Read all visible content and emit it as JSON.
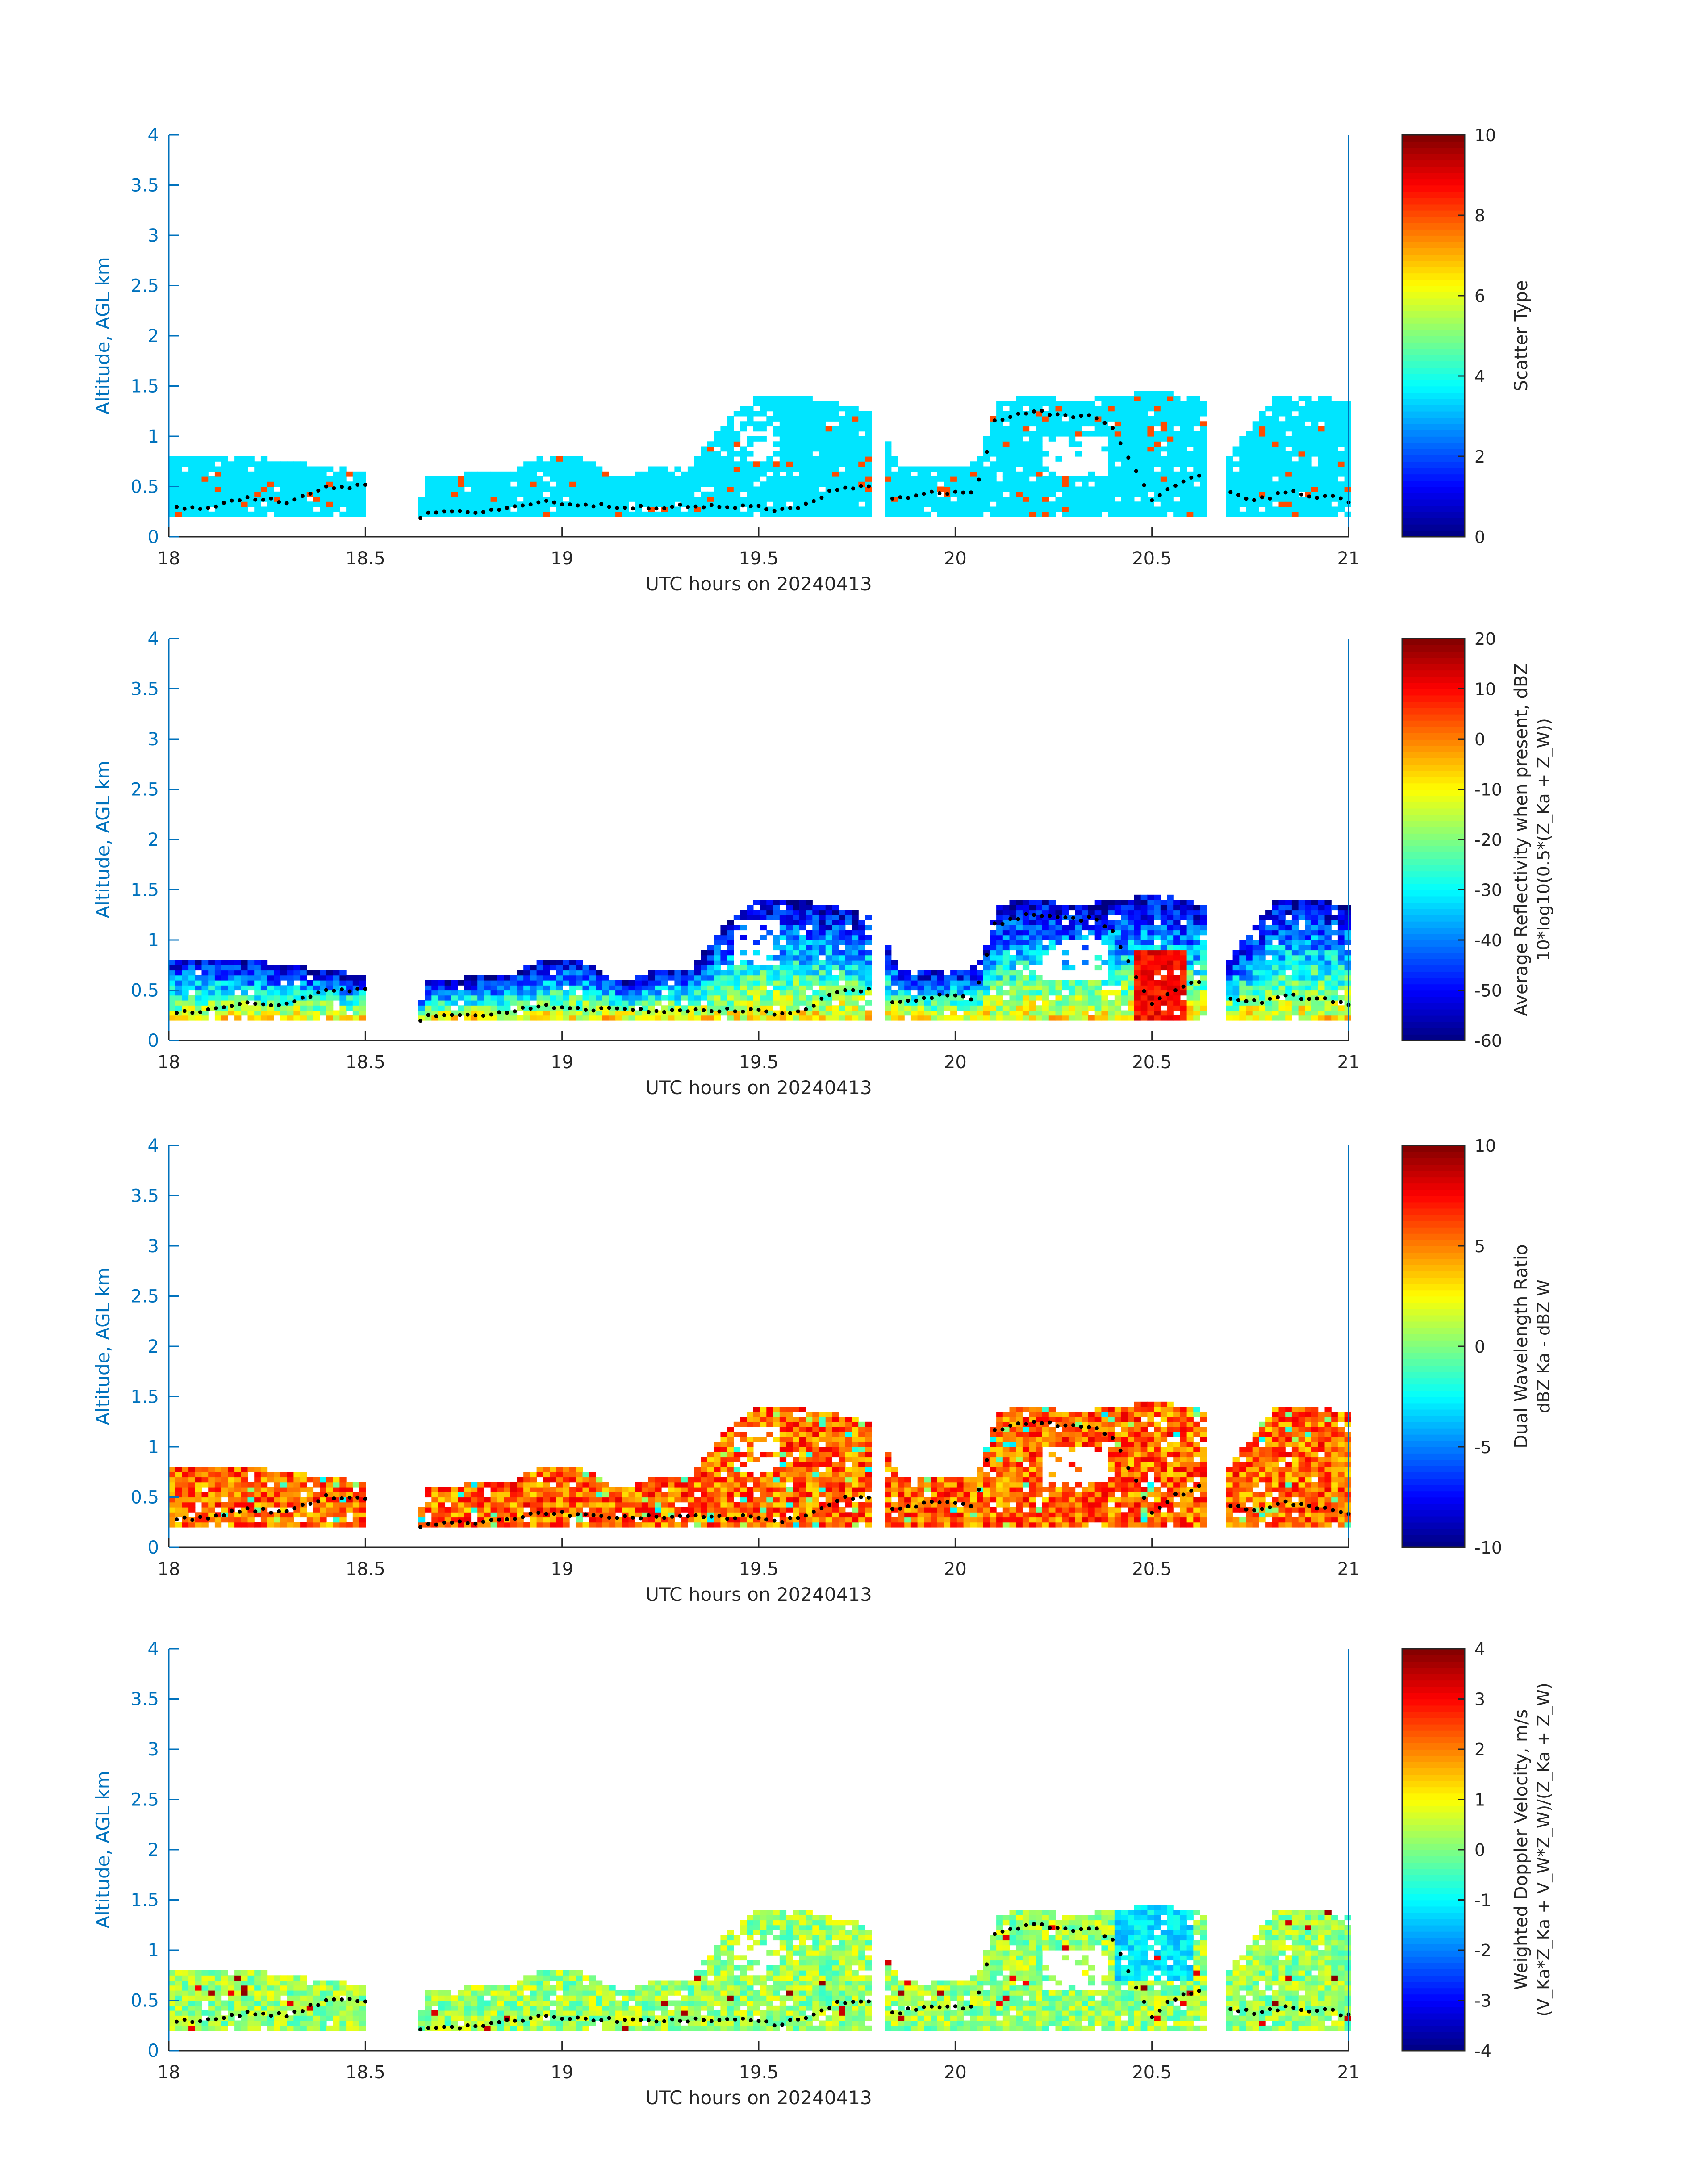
{
  "figure": {
    "colors": {
      "axis_blue": "#0072BD",
      "text_dark": "#262626",
      "overlay_points": "#000000"
    }
  },
  "chart_data": [
    {
      "type": "heatmap",
      "id": "scatter-type",
      "xlabel": "UTC hours on 20240413",
      "ylabel": "Altitude, AGL km",
      "x_ticks": [
        "18",
        "18.5",
        "19",
        "19.5",
        "20",
        "20.5",
        "21"
      ],
      "y_ticks": [
        "0",
        "0.5",
        "1",
        "1.5",
        "2",
        "2.5",
        "3",
        "3.5",
        "4"
      ],
      "xlim": [
        18,
        21
      ],
      "ylim": [
        0,
        4
      ],
      "colorbar": {
        "label_line1": "Scatter Type",
        "label_line2": "",
        "colormap": "jet",
        "clim": [
          0,
          10
        ],
        "ticks": [
          "0",
          "2",
          "4",
          "6",
          "8",
          "10"
        ]
      },
      "description_values": "Mostly constant value ≈3.5 (cyan) with sparse ≈8 (red-orange) columns; cloud tops near 0.7 km before 19.4 h and up to 1.4 km from 19.4–21 h."
    },
    {
      "type": "heatmap",
      "id": "reflectivity",
      "xlabel": "UTC hours on 20240413",
      "ylabel": "Altitude, AGL km",
      "x_ticks": [
        "18",
        "18.5",
        "19",
        "19.5",
        "20",
        "20.5",
        "21"
      ],
      "y_ticks": [
        "0",
        "0.5",
        "1",
        "1.5",
        "2",
        "2.5",
        "3",
        "3.5",
        "4"
      ],
      "xlim": [
        18,
        21
      ],
      "ylim": [
        0,
        4
      ],
      "colorbar": {
        "label_line1": "Average Reflectivity when present, dBZ",
        "label_line2": "10*log10(0.5*(Z_Ka + Z_W))",
        "colormap": "jet",
        "clim": [
          -60,
          20
        ],
        "ticks": [
          "-60",
          "-50",
          "-40",
          "-30",
          "-20",
          "-10",
          "0",
          "10",
          "20"
        ]
      }
    },
    {
      "type": "heatmap",
      "id": "dwr",
      "xlabel": "UTC hours on 20240413",
      "ylabel": "Altitude, AGL km",
      "x_ticks": [
        "18",
        "18.5",
        "19",
        "19.5",
        "20",
        "20.5",
        "21"
      ],
      "y_ticks": [
        "0",
        "0.5",
        "1",
        "1.5",
        "2",
        "2.5",
        "3",
        "3.5",
        "4"
      ],
      "xlim": [
        18,
        21
      ],
      "ylim": [
        0,
        4
      ],
      "colorbar": {
        "label_line1": "Dual Wavelength Ratio",
        "label_line2": "dBZ Ka - dBZ W",
        "colormap": "jet",
        "clim": [
          -10,
          10
        ],
        "ticks": [
          "-10",
          "-5",
          "0",
          "5",
          "10"
        ]
      }
    },
    {
      "type": "heatmap",
      "id": "doppler",
      "xlabel": "UTC hours on 20240413",
      "ylabel": "Altitude, AGL km",
      "x_ticks": [
        "18",
        "18.5",
        "19",
        "19.5",
        "20",
        "20.5",
        "21"
      ],
      "y_ticks": [
        "0",
        "0.5",
        "1",
        "1.5",
        "2",
        "2.5",
        "3",
        "3.5",
        "4"
      ],
      "xlim": [
        18,
        21
      ],
      "ylim": [
        0,
        4
      ],
      "colorbar": {
        "label_line1": "Weighted Doppler Velocity, m/s",
        "label_line2": "(V_Ka*Z_Ka + V_W*Z_W)/(Z_Ka + Z_W)",
        "colormap": "jet",
        "clim": [
          -4,
          4
        ],
        "ticks": [
          "-4",
          "-3",
          "-2",
          "-1",
          "0",
          "1",
          "2",
          "3",
          "4"
        ]
      }
    }
  ],
  "cloud_profile": {
    "x_hours": [
      18.0,
      18.1,
      18.2,
      18.3,
      18.4,
      18.5,
      18.6,
      18.65,
      18.75,
      18.85,
      18.95,
      19.05,
      19.15,
      19.25,
      19.32,
      19.4,
      19.48,
      19.55,
      19.62,
      19.7,
      19.78,
      19.85,
      19.95,
      20.05,
      20.1,
      20.15,
      20.2,
      20.25,
      20.3,
      20.35,
      20.4,
      20.45,
      20.5,
      20.55,
      20.62,
      20.68,
      20.75,
      20.8,
      20.85,
      20.9,
      20.95,
      21.0
    ],
    "top_km": [
      0.78,
      0.8,
      0.78,
      0.72,
      0.67,
      0.62,
      0.0,
      0.55,
      0.6,
      0.62,
      0.78,
      0.75,
      0.55,
      0.7,
      0.7,
      1.1,
      1.38,
      1.38,
      1.35,
      1.3,
      1.2,
      0.7,
      0.65,
      0.72,
      1.3,
      1.4,
      1.4,
      1.35,
      1.3,
      1.35,
      1.4,
      1.4,
      1.45,
      1.4,
      1.35,
      0.75,
      1.1,
      1.35,
      1.4,
      1.38,
      1.35,
      1.3
    ],
    "base_km": 0.2,
    "dots_km": [
      0.28,
      0.3,
      0.38,
      0.35,
      0.5,
      0.5,
      0.0,
      0.24,
      0.24,
      0.28,
      0.35,
      0.32,
      0.3,
      0.3,
      0.3,
      0.3,
      0.3,
      0.26,
      0.32,
      0.48,
      0.5,
      0.38,
      0.45,
      0.42,
      1.15,
      1.22,
      1.25,
      1.22,
      1.2,
      1.22,
      1.1,
      0.72,
      0.35,
      0.5,
      0.6,
      0.45,
      0.38,
      0.4,
      0.45,
      0.4,
      0.4,
      0.35
    ]
  }
}
